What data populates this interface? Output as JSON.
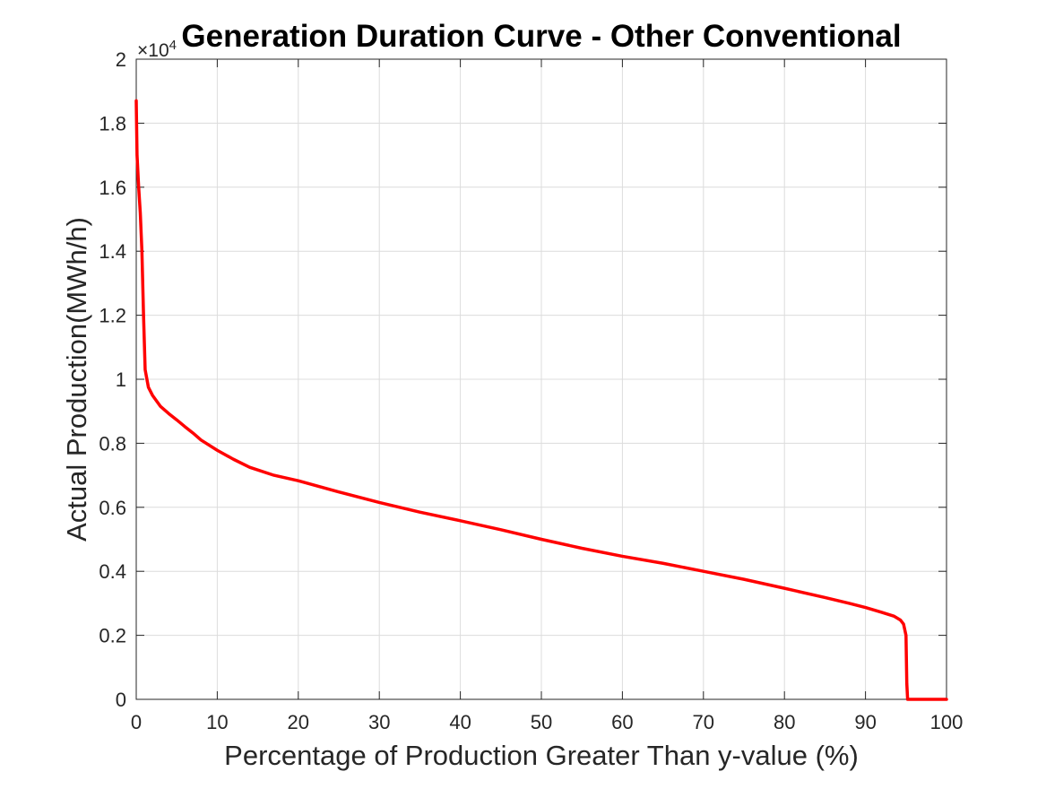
{
  "chart_data": {
    "type": "line",
    "title": "Generation Duration Curve - Other Conventional",
    "xlabel": "Percentage of Production Greater Than y-value (%)",
    "ylabel": "Actual Production(MWh/h)",
    "y_exponent_label": "×10",
    "y_exponent_power": "4",
    "xlim": [
      0,
      100
    ],
    "ylim": [
      0,
      2
    ],
    "xticks": [
      0,
      10,
      20,
      30,
      40,
      50,
      60,
      70,
      80,
      90,
      100
    ],
    "xtick_labels": [
      "0",
      "10",
      "20",
      "30",
      "40",
      "50",
      "60",
      "70",
      "80",
      "90",
      "100"
    ],
    "yticks": [
      0,
      0.2,
      0.4,
      0.6,
      0.8,
      1.0,
      1.2,
      1.4,
      1.6,
      1.8,
      2.0
    ],
    "ytick_labels": [
      "0",
      "0.2",
      "0.4",
      "0.6",
      "0.8",
      "1",
      "1.2",
      "1.4",
      "1.6",
      "1.8",
      "2"
    ],
    "grid": true,
    "series": [
      {
        "color": "#ff0000",
        "x": [
          0,
          0.1,
          0.3,
          0.5,
          0.7,
          0.9,
          1.1,
          1.5,
          2.0,
          3.0,
          4.0,
          5.0,
          6.0,
          7.0,
          8.0,
          10.0,
          12.0,
          14.0,
          17.0,
          20.0,
          25.0,
          30.0,
          35.0,
          40.0,
          45.0,
          50.0,
          55.0,
          60.0,
          65.0,
          70.0,
          75.0,
          80.0,
          85.0,
          88.0,
          90.0,
          92.0,
          93.5,
          94.3,
          94.7,
          95.0,
          95.1,
          95.2,
          96.0,
          100.0
        ],
        "y": [
          1.87,
          1.7,
          1.6,
          1.52,
          1.4,
          1.2,
          1.03,
          0.975,
          0.95,
          0.915,
          0.893,
          0.873,
          0.852,
          0.832,
          0.81,
          0.778,
          0.75,
          0.725,
          0.7,
          0.683,
          0.648,
          0.615,
          0.585,
          0.558,
          0.53,
          0.5,
          0.472,
          0.447,
          0.425,
          0.4,
          0.375,
          0.347,
          0.318,
          0.3,
          0.287,
          0.272,
          0.26,
          0.248,
          0.235,
          0.2,
          0.05,
          0.0,
          0.0,
          0.0
        ]
      }
    ]
  }
}
